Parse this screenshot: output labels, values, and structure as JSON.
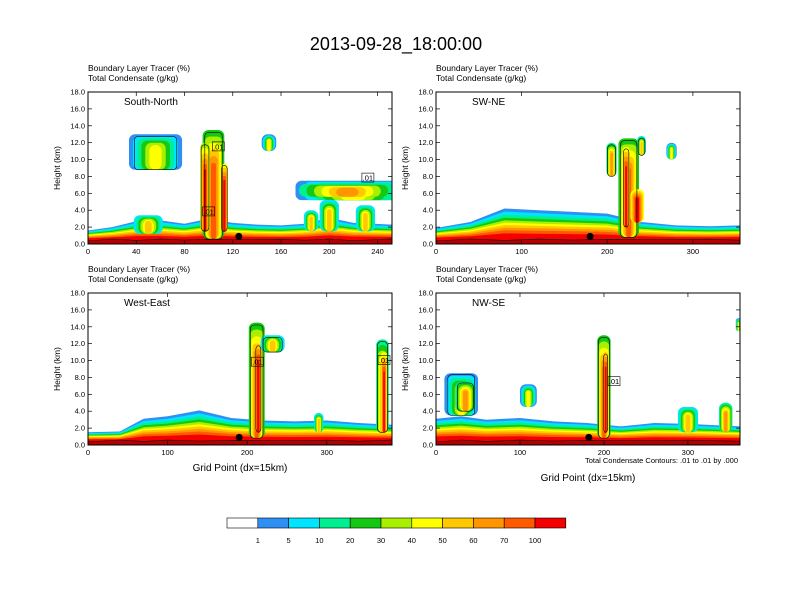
{
  "title": "2013-09-28_18:00:00",
  "colors": {
    "levels": [
      "#ffffff",
      "#2f8ff5",
      "#00e5ff",
      "#00f090",
      "#14c814",
      "#a8f000",
      "#ffff00",
      "#ffc800",
      "#ff9600",
      "#ff5a00",
      "#f50000"
    ],
    "ground": "#b40000",
    "contour": "#000000",
    "marker": "#000000"
  },
  "colorbar": {
    "labels": [
      "1",
      "5",
      "10",
      "20",
      "30",
      "40",
      "50",
      "60",
      "70",
      "100"
    ]
  },
  "chart_data": [
    {
      "type": "filled-contour",
      "panel_title": "South-North",
      "header_line1": "Boundary Layer Tracer   (%)",
      "header_line2": "Total Condensate   (g/kg)",
      "ylabel": "Height (km)",
      "xlabel": "",
      "xlim": [
        0,
        252
      ],
      "ylim": [
        0,
        18
      ],
      "xticks": [
        "0",
        "40",
        "80",
        "120",
        "160",
        "200",
        "240"
      ],
      "xtick_values": [
        0,
        40,
        80,
        120,
        160,
        200,
        240
      ],
      "yticks": [
        "0.0",
        "2.0",
        "4.0",
        "6.0",
        "8.0",
        "10.0",
        "12.0",
        "14.0",
        "16.0",
        "18.0"
      ],
      "ground_height_km": 0.6,
      "boundary_layer": [
        [
          0,
          1.0
        ],
        [
          20,
          1.4
        ],
        [
          40,
          2.1
        ],
        [
          60,
          2.2
        ],
        [
          80,
          1.8
        ],
        [
          100,
          2.4
        ],
        [
          120,
          1.9
        ],
        [
          140,
          1.7
        ],
        [
          160,
          1.6
        ],
        [
          180,
          1.8
        ],
        [
          200,
          2.5
        ],
        [
          220,
          1.9
        ],
        [
          252,
          1.7
        ]
      ],
      "marker": {
        "x": 125,
        "y": 0.9
      },
      "contour_labels": [
        {
          "x": 108,
          "y": 11.5,
          "text": ".01"
        },
        {
          "x": 100,
          "y": 3.8,
          "text": ".01"
        },
        {
          "x": 232,
          "y": 7.8,
          "text": ".01"
        }
      ]
    },
    {
      "type": "filled-contour",
      "panel_title": "SW-NE",
      "header_line1": "Boundary Layer Tracer   (%)",
      "header_line2": "Total Condensate   (g/kg)",
      "ylabel": "Height (km)",
      "xlabel": "",
      "xlim": [
        0,
        355
      ],
      "ylim": [
        0,
        18
      ],
      "xticks": [
        "0",
        "100",
        "200",
        "300"
      ],
      "xtick_values": [
        0,
        100,
        200,
        300
      ],
      "yticks": [
        "0.0",
        "2.0",
        "4.0",
        "6.0",
        "8.0",
        "10.0",
        "12.0",
        "14.0",
        "16.0",
        "18.0"
      ],
      "ground_height_km": 0.6,
      "boundary_layer": [
        [
          0,
          1.3
        ],
        [
          40,
          2.0
        ],
        [
          80,
          3.6
        ],
        [
          120,
          3.4
        ],
        [
          160,
          3.2
        ],
        [
          200,
          3.0
        ],
        [
          240,
          2.0
        ],
        [
          280,
          1.6
        ],
        [
          320,
          1.5
        ],
        [
          355,
          1.6
        ]
      ],
      "marker": {
        "x": 180,
        "y": 0.9
      },
      "contour_labels": []
    },
    {
      "type": "filled-contour",
      "panel_title": "West-East",
      "header_line1": "Boundary Layer Tracer   (%)",
      "header_line2": "Total Condensate   (g/kg)",
      "ylabel": "Height (km)",
      "xlabel": "Grid Point (dx=15km)",
      "xlim": [
        0,
        382
      ],
      "ylim": [
        0,
        18
      ],
      "xticks": [
        "0",
        "100",
        "200",
        "300"
      ],
      "xtick_values": [
        0,
        100,
        200,
        300
      ],
      "yticks": [
        "0.0",
        "2.0",
        "4.0",
        "6.0",
        "8.0",
        "10.0",
        "12.0",
        "14.0",
        "16.0",
        "18.0"
      ],
      "ground_height_km": 0.6,
      "boundary_layer": [
        [
          0,
          0.9
        ],
        [
          40,
          1.0
        ],
        [
          70,
          2.5
        ],
        [
          100,
          2.8
        ],
        [
          140,
          3.5
        ],
        [
          180,
          2.6
        ],
        [
          220,
          2.3
        ],
        [
          260,
          2.2
        ],
        [
          300,
          2.3
        ],
        [
          340,
          2.0
        ],
        [
          382,
          1.8
        ]
      ],
      "marker": {
        "x": 190,
        "y": 0.9
      },
      "contour_labels": [
        {
          "x": 213,
          "y": 9.8,
          "text": ".01"
        },
        {
          "x": 372,
          "y": 10.0,
          "text": ".01"
        }
      ]
    },
    {
      "type": "filled-contour",
      "panel_title": "NW-SE",
      "header_line1": "Boundary Layer Tracer   (%)",
      "header_line2": "Total Condensate   (g/kg)",
      "ylabel": "Height (km)",
      "xlabel": "Grid Point (dx=15km)",
      "xlim": [
        0,
        362
      ],
      "ylim": [
        0,
        18
      ],
      "xticks": [
        "0",
        "100",
        "200",
        "300"
      ],
      "xtick_values": [
        0,
        100,
        200,
        300
      ],
      "yticks": [
        "0.0",
        "2.0",
        "4.0",
        "6.0",
        "8.0",
        "10.0",
        "12.0",
        "14.0",
        "16.0",
        "18.0"
      ],
      "ground_height_km": 0.6,
      "boundary_layer": [
        [
          0,
          2.5
        ],
        [
          30,
          2.8
        ],
        [
          60,
          2.4
        ],
        [
          100,
          2.6
        ],
        [
          140,
          2.2
        ],
        [
          180,
          2.0
        ],
        [
          220,
          1.6
        ],
        [
          260,
          2.0
        ],
        [
          300,
          1.9
        ],
        [
          362,
          1.6
        ]
      ],
      "marker": {
        "x": 182,
        "y": 0.9
      },
      "contour_labels": [
        {
          "x": 212,
          "y": 7.5,
          "text": ".01"
        }
      ],
      "note": "Total Condensate Contours: .01 to .01 by .000"
    }
  ]
}
